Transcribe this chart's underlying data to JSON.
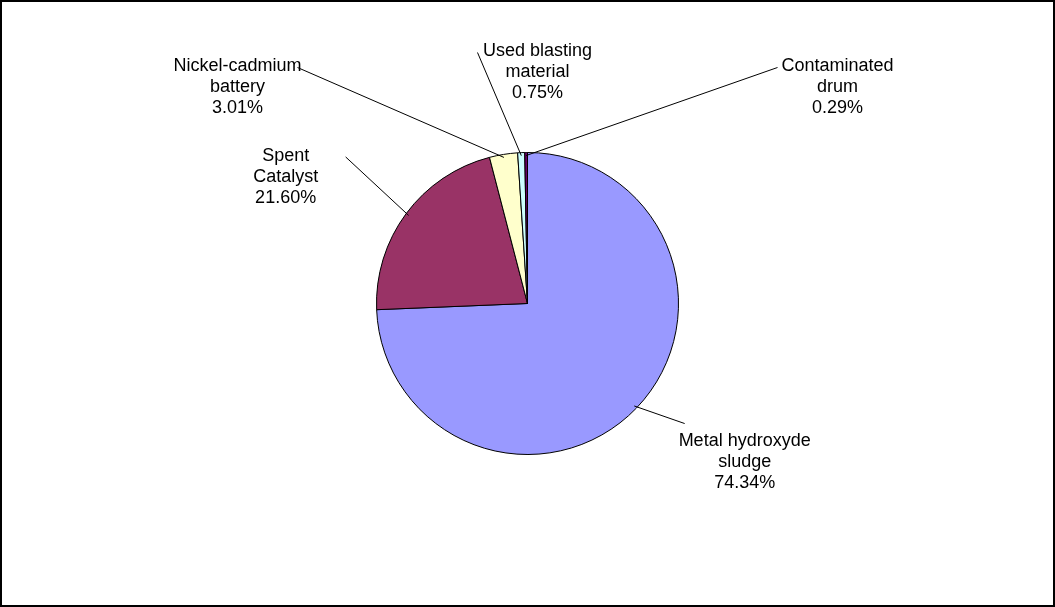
{
  "chart_data": {
    "type": "pie",
    "categories": [
      "Metal hydroxyde sludge",
      "Spent Catalyst",
      "Nickel-cadmium battery",
      "Used blasting material",
      "Contaminated drum"
    ],
    "values": [
      74.34,
      21.6,
      3.01,
      0.75,
      0.29
    ],
    "value_labels": [
      "74.34%",
      "21.60%",
      "3.01%",
      "0.75%",
      "0.29%"
    ],
    "colors": [
      "#9999ff",
      "#993366",
      "#ffffcc",
      "#ccffff",
      "#660066"
    ],
    "legend": false
  }
}
